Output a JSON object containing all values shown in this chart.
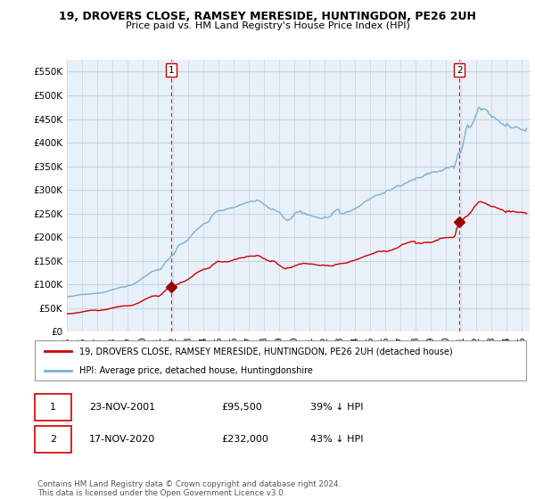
{
  "title": "19, DROVERS CLOSE, RAMSEY MERESIDE, HUNTINGDON, PE26 2UH",
  "subtitle": "Price paid vs. HM Land Registry's House Price Index (HPI)",
  "ylim": [
    0,
    575000
  ],
  "yticks": [
    0,
    50000,
    100000,
    150000,
    200000,
    250000,
    300000,
    350000,
    400000,
    450000,
    500000,
    550000
  ],
  "ytick_labels": [
    "£0",
    "£50K",
    "£100K",
    "£150K",
    "£200K",
    "£250K",
    "£300K",
    "£350K",
    "£400K",
    "£450K",
    "£500K",
    "£550K"
  ],
  "xlim_start": 1995.0,
  "xlim_end": 2025.5,
  "sale1_date": 2001.9,
  "sale1_price": 95500,
  "sale1_label": "1",
  "sale2_date": 2020.88,
  "sale2_price": 232000,
  "sale2_label": "2",
  "vline_color": "#dd0000",
  "sale_dot_color": "#990000",
  "hpi_line_color": "#7ab0d4",
  "price_line_color": "#cc0000",
  "chart_bg_color": "#e8f0f8",
  "bg_color": "#ffffff",
  "grid_color": "#c8d4e0",
  "legend_price_label": "19, DROVERS CLOSE, RAMSEY MERESIDE, HUNTINGDON, PE26 2UH (detached house)",
  "legend_hpi_label": "HPI: Average price, detached house, Huntingdonshire",
  "table_row1": [
    "1",
    "23-NOV-2001",
    "£95,500",
    "39% ↓ HPI"
  ],
  "table_row2": [
    "2",
    "17-NOV-2020",
    "£232,000",
    "43% ↓ HPI"
  ],
  "footnote": "Contains HM Land Registry data © Crown copyright and database right 2024.\nThis data is licensed under the Open Government Licence v3.0."
}
